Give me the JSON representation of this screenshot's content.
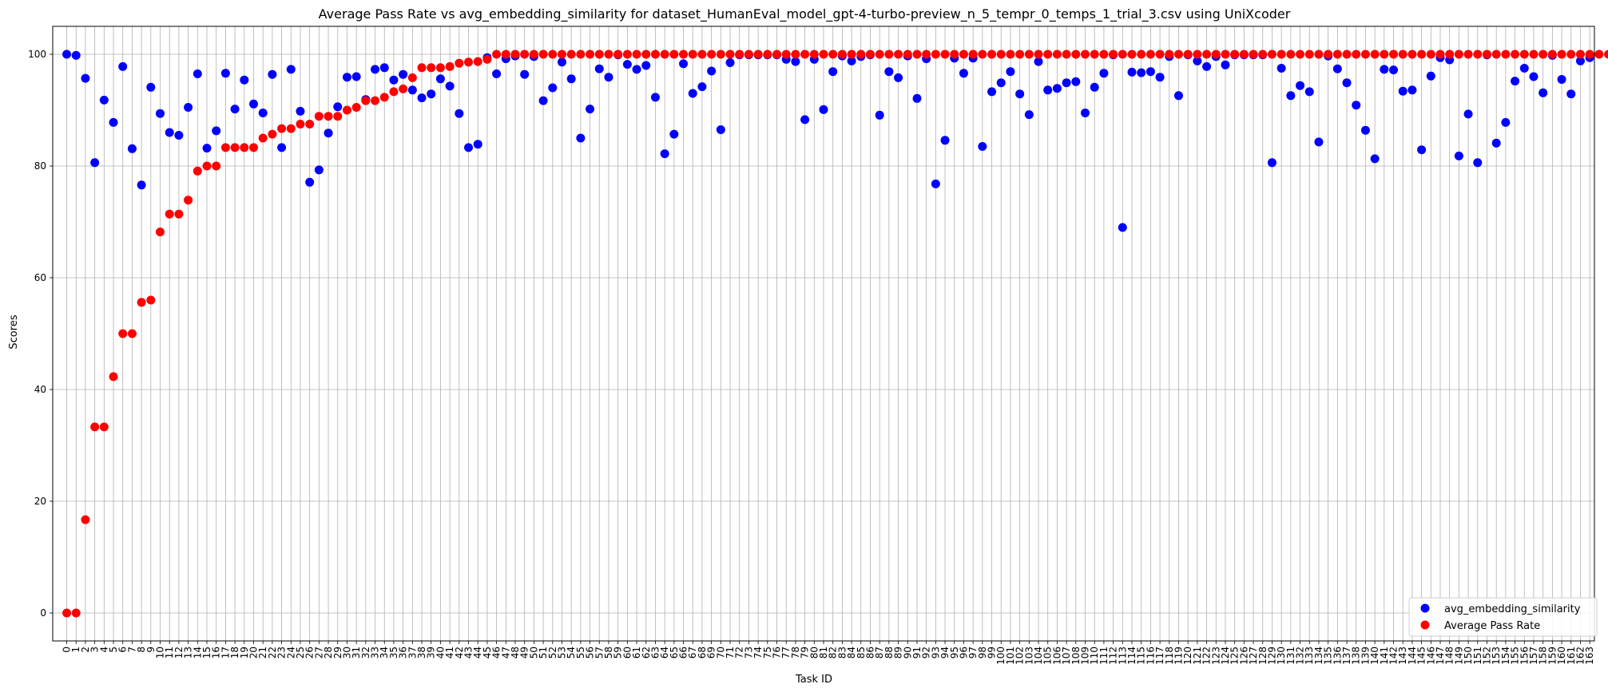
{
  "chart_data": {
    "type": "scatter",
    "title": "Average Pass Rate vs avg_embedding_similarity for dataset_HumanEval_model_gpt-4-turbo-preview_n_5_tempr_0_temps_1_trial_3.csv using UniXcoder",
    "xlabel": "Task ID",
    "ylabel": "Scores",
    "xlim": [
      -1.5,
      163.5
    ],
    "ylim": [
      -5,
      105
    ],
    "yticks": [
      0,
      20,
      40,
      60,
      80,
      100
    ],
    "x_tick_step": 1,
    "grid": true,
    "legend_position": "lower right",
    "series": [
      {
        "name": "avg_embedding_similarity",
        "color": "#0000ff",
        "values": [
          100.0,
          99.8,
          95.7,
          80.6,
          91.8,
          87.8,
          97.8,
          83.1,
          76.6,
          94.1,
          89.4,
          86.0,
          85.5,
          90.5,
          96.5,
          83.2,
          86.3,
          96.6,
          90.2,
          95.4,
          91.1,
          89.5,
          96.4,
          83.3,
          97.3,
          89.8,
          77.1,
          79.3,
          85.9,
          90.6,
          95.9,
          96.0,
          91.9,
          97.3,
          97.6,
          95.4,
          96.4,
          93.6,
          92.2,
          92.9,
          95.6,
          94.3,
          89.4,
          83.3,
          83.9,
          99.4,
          96.5,
          99.2,
          99.7,
          96.4,
          99.6,
          91.7,
          94.0,
          98.6,
          95.6,
          85.0,
          90.2,
          97.4,
          95.9,
          99.9,
          98.2,
          97.3,
          98.0,
          92.3,
          82.2,
          85.7,
          98.3,
          93.0,
          94.2,
          97.0,
          86.5,
          98.5,
          99.9,
          99.9,
          99.9,
          99.9,
          99.9,
          99.1,
          98.7,
          88.3,
          99.1,
          90.1,
          96.9,
          99.7,
          98.8,
          99.6,
          99.9,
          89.1,
          96.9,
          95.8,
          99.7,
          92.1,
          99.2,
          76.8,
          84.6,
          99.3,
          96.6,
          99.3,
          83.5,
          93.3,
          94.9,
          96.9,
          92.9,
          89.2,
          98.7,
          93.6,
          93.9,
          94.9,
          95.1,
          89.5,
          94.1,
          96.6,
          99.9,
          69.0,
          96.8,
          96.7,
          96.9,
          95.9,
          99.6,
          92.6,
          99.9,
          98.8,
          97.8,
          99.6,
          98.1,
          99.9,
          99.9,
          99.9,
          99.9,
          80.6,
          97.5,
          92.6,
          94.4,
          93.3,
          84.3,
          99.7,
          97.4,
          94.9,
          90.9,
          86.4,
          81.3,
          97.3,
          97.2,
          93.4,
          93.6,
          82.9,
          96.1,
          99.4,
          99.0,
          81.8,
          89.3,
          80.6,
          99.9,
          84.1,
          87.8,
          95.2,
          97.5,
          96.0,
          93.1,
          99.8,
          95.5,
          92.9,
          98.8,
          99.4
        ]
      },
      {
        "name": "Average Pass Rate",
        "color": "#ff0000",
        "values": [
          0.0,
          0.0,
          16.7,
          33.3,
          33.3,
          42.3,
          50.0,
          50.0,
          55.6,
          56.0,
          68.2,
          71.4,
          71.4,
          73.9,
          79.1,
          80.0,
          80.0,
          83.3,
          83.3,
          83.3,
          83.3,
          85.0,
          85.7,
          86.7,
          86.7,
          87.5,
          87.5,
          88.9,
          88.9,
          88.9,
          90.0,
          90.5,
          91.7,
          91.7,
          92.3,
          93.3,
          93.8,
          95.8,
          97.6,
          97.6,
          97.6,
          97.8,
          98.4,
          98.6,
          98.7,
          99.1,
          100.0,
          100.0,
          100.0,
          100.0,
          100.0,
          100.0,
          100.0,
          100.0,
          100.0,
          100.0,
          100.0,
          100.0,
          100.0,
          100.0,
          100.0,
          100.0,
          100.0,
          100.0,
          100.0,
          100.0,
          100.0,
          100.0,
          100.0,
          100.0,
          100.0,
          100.0,
          100.0,
          100.0,
          100.0,
          100.0,
          100.0,
          100.0,
          100.0,
          100.0,
          100.0,
          100.0,
          100.0,
          100.0,
          100.0,
          100.0,
          100.0,
          100.0,
          100.0,
          100.0,
          100.0,
          100.0,
          100.0,
          100.0,
          100.0,
          100.0,
          100.0,
          100.0,
          100.0,
          100.0,
          100.0,
          100.0,
          100.0,
          100.0,
          100.0,
          100.0,
          100.0,
          100.0,
          100.0,
          100.0,
          100.0,
          100.0,
          100.0,
          100.0,
          100.0,
          100.0,
          100.0,
          100.0,
          100.0,
          100.0,
          100.0,
          100.0,
          100.0,
          100.0,
          100.0,
          100.0,
          100.0,
          100.0,
          100.0,
          100.0,
          100.0,
          100.0,
          100.0,
          100.0,
          100.0,
          100.0,
          100.0,
          100.0,
          100.0,
          100.0,
          100.0,
          100.0,
          100.0,
          100.0,
          100.0,
          100.0,
          100.0,
          100.0,
          100.0,
          100.0,
          100.0,
          100.0,
          100.0,
          100.0,
          100.0,
          100.0,
          100.0,
          100.0,
          100.0,
          100.0,
          100.0,
          100.0,
          100.0,
          100.0,
          100.0,
          100.0,
          100.0
        ]
      }
    ]
  }
}
